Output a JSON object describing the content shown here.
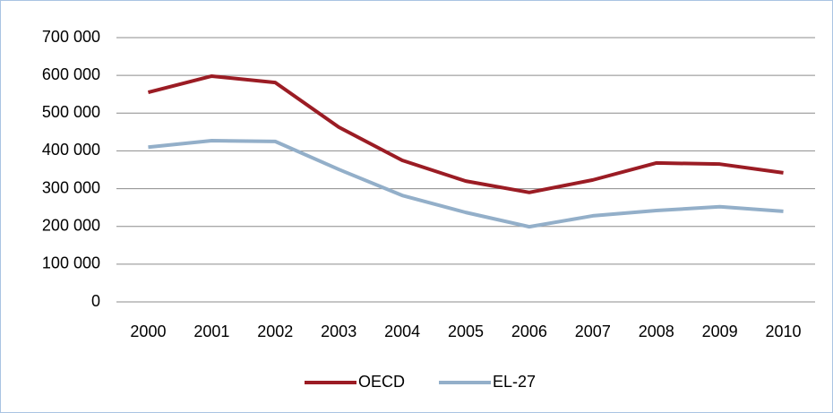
{
  "chart_data": {
    "type": "line",
    "categories": [
      "2000",
      "2001",
      "2002",
      "2003",
      "2004",
      "2005",
      "2006",
      "2007",
      "2008",
      "2009",
      "2010"
    ],
    "series": [
      {
        "name": "OECD",
        "color": "#9b1c24",
        "values": [
          555000,
          598000,
          581000,
          463000,
          375000,
          320000,
          290000,
          323000,
          368000,
          365000,
          342000
        ]
      },
      {
        "name": "EL-27",
        "color": "#93afc9",
        "values": [
          410000,
          427000,
          425000,
          351000,
          282000,
          237000,
          199000,
          228000,
          242000,
          252000,
          240000
        ]
      }
    ],
    "ylim": [
      0,
      700000
    ],
    "yticks": [
      0,
      {
        "value": 100000,
        "label": "100 000"
      },
      {
        "value": 200000,
        "label": "200 000"
      },
      {
        "value": 300000,
        "label": "300 000"
      },
      {
        "value": 400000,
        "label": "400 000"
      },
      {
        "value": 500000,
        "label": "500 000"
      },
      {
        "value": 600000,
        "label": "600 000"
      },
      {
        "value": 700000,
        "label": "700 000"
      }
    ],
    "grid": true,
    "legend": "bottom"
  }
}
